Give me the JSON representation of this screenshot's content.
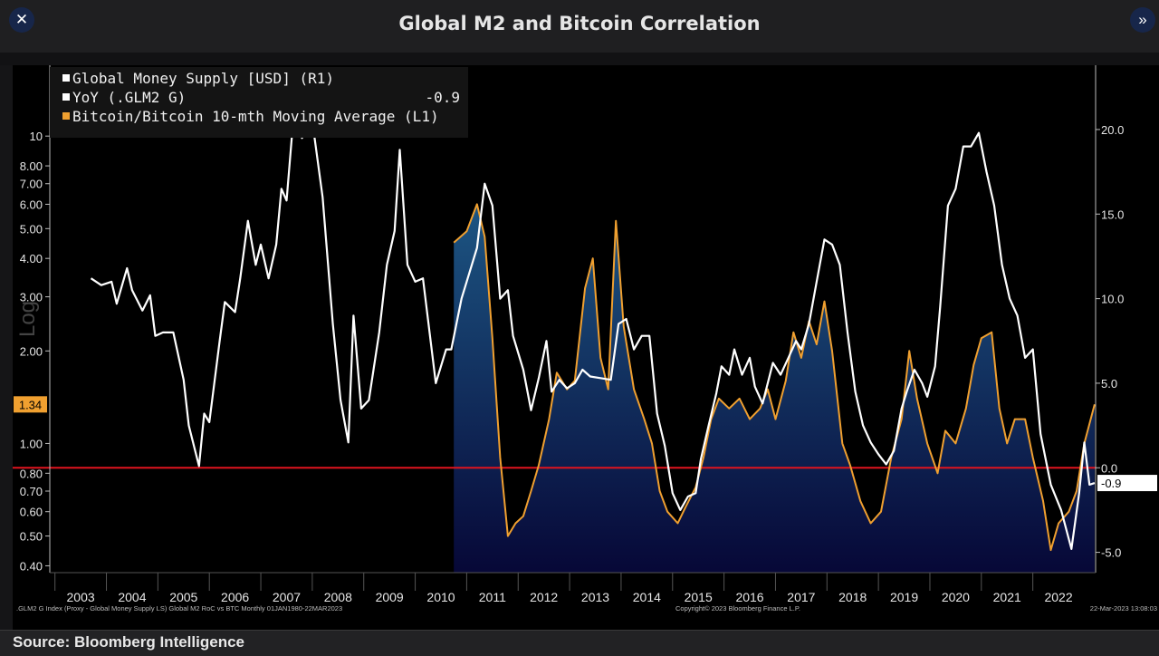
{
  "window": {
    "title": "Global M2 and Bitcoin Correlation",
    "close_glyph": "✕",
    "more_glyph": "»"
  },
  "footer": {
    "source": "Source: Bloomberg Intelligence",
    "left_note": ".GLM2 G Index (Proxy - Global Money Supply LS) Global M2 RoC vs BTC  Monthly 01JAN1980-22MAR2023",
    "center_note": "Copyright© 2023 Bloomberg Finance L.P.",
    "right_note": "22-Mar-2023 13:08:03"
  },
  "chart_data": {
    "type": "line",
    "legend": {
      "placement": "top-left",
      "entries": [
        {
          "label": "Global Money Supply [USD] (R1)",
          "value": ""
        },
        {
          "label": "YoY (.GLM2 G)",
          "value": "-0.9"
        },
        {
          "label": "Bitcoin/Bitcoin 10-mth Moving Average (L1)",
          "value": ""
        }
      ]
    },
    "left_axis": {
      "label": "Log",
      "scale": "log",
      "range": [
        0.38,
        17
      ],
      "ticks": [
        0.4,
        0.5,
        0.6,
        0.7,
        0.8,
        1.0,
        2.0,
        3.0,
        4.0,
        5.0,
        6.0,
        7.0,
        8.0,
        10
      ],
      "tick_labels": [
        "0.40",
        "0.50",
        "0.60",
        "0.70",
        "0.80",
        "1.00",
        "2.00",
        "3.00",
        "4.00",
        "5.00",
        "6.00",
        "7.00",
        "8.00",
        "10"
      ],
      "current_value": "1.34"
    },
    "right_axis": {
      "range": [
        -6.2,
        23.8
      ],
      "ticks": [
        -5,
        0,
        5,
        10,
        15,
        20
      ],
      "tick_labels": [
        "-5.0",
        "0.0",
        "5.0",
        "10.0",
        "15.0",
        "20.0"
      ],
      "current_value": "-0.9"
    },
    "x_axis": {
      "range": [
        2002.9,
        2023.22
      ],
      "tick_labels": [
        "2003",
        "2004",
        "2005",
        "2006",
        "2007",
        "2008",
        "2009",
        "2010",
        "2011",
        "2012",
        "2013",
        "2014",
        "2015",
        "2016",
        "2017",
        "2018",
        "2019",
        "2020",
        "2021",
        "2022"
      ]
    },
    "zero_line": {
      "value": 0,
      "color": "#e0141e"
    },
    "series": [
      {
        "name": "YoY (.GLM2 G)",
        "axis": "right",
        "color": "#ffffff",
        "points": [
          [
            2003.7,
            11.2
          ],
          [
            2003.9,
            10.8
          ],
          [
            2004.1,
            11.0
          ],
          [
            2004.2,
            9.7
          ],
          [
            2004.4,
            11.8
          ],
          [
            2004.5,
            10.5
          ],
          [
            2004.7,
            9.3
          ],
          [
            2004.85,
            10.2
          ],
          [
            2004.95,
            7.8
          ],
          [
            2005.1,
            8.0
          ],
          [
            2005.3,
            8.0
          ],
          [
            2005.5,
            5.2
          ],
          [
            2005.6,
            2.5
          ],
          [
            2005.8,
            0.1
          ],
          [
            2005.9,
            3.2
          ],
          [
            2006.0,
            2.7
          ],
          [
            2006.2,
            7.5
          ],
          [
            2006.3,
            9.8
          ],
          [
            2006.5,
            9.2
          ],
          [
            2006.6,
            11.2
          ],
          [
            2006.75,
            14.6
          ],
          [
            2006.9,
            12.0
          ],
          [
            2007.0,
            13.2
          ],
          [
            2007.15,
            11.2
          ],
          [
            2007.3,
            13.2
          ],
          [
            2007.4,
            16.5
          ],
          [
            2007.5,
            15.8
          ],
          [
            2007.6,
            19.5
          ],
          [
            2007.7,
            21.5
          ],
          [
            2007.8,
            19.5
          ],
          [
            2008.0,
            20.5
          ],
          [
            2008.2,
            16.0
          ],
          [
            2008.4,
            8.5
          ],
          [
            2008.55,
            4.0
          ],
          [
            2008.7,
            1.5
          ],
          [
            2008.8,
            9.0
          ],
          [
            2008.95,
            3.5
          ],
          [
            2009.1,
            4.0
          ],
          [
            2009.3,
            8.0
          ],
          [
            2009.45,
            12.0
          ],
          [
            2009.6,
            14.0
          ],
          [
            2009.7,
            18.8
          ],
          [
            2009.85,
            12.0
          ],
          [
            2010.0,
            11.0
          ],
          [
            2010.15,
            11.2
          ],
          [
            2010.4,
            5.0
          ],
          [
            2010.6,
            7.0
          ],
          [
            2010.7,
            7.0
          ],
          [
            2010.9,
            10.0
          ],
          [
            2011.0,
            11.0
          ],
          [
            2011.2,
            13.0
          ],
          [
            2011.35,
            16.8
          ],
          [
            2011.5,
            15.5
          ],
          [
            2011.65,
            10.0
          ],
          [
            2011.8,
            10.5
          ],
          [
            2011.9,
            7.8
          ],
          [
            2012.1,
            5.8
          ],
          [
            2012.25,
            3.4
          ],
          [
            2012.4,
            5.3
          ],
          [
            2012.55,
            7.5
          ],
          [
            2012.65,
            4.5
          ],
          [
            2012.8,
            5.2
          ],
          [
            2012.95,
            4.7
          ],
          [
            2013.1,
            5.0
          ],
          [
            2013.25,
            5.8
          ],
          [
            2013.4,
            5.4
          ],
          [
            2013.6,
            5.3
          ],
          [
            2013.8,
            5.2
          ],
          [
            2013.95,
            8.5
          ],
          [
            2014.1,
            8.8
          ],
          [
            2014.25,
            7.0
          ],
          [
            2014.4,
            7.8
          ],
          [
            2014.55,
            7.8
          ],
          [
            2014.7,
            3.2
          ],
          [
            2014.85,
            1.3
          ],
          [
            2015.0,
            -1.5
          ],
          [
            2015.15,
            -2.5
          ],
          [
            2015.3,
            -1.7
          ],
          [
            2015.45,
            -1.5
          ],
          [
            2015.55,
            0.5
          ],
          [
            2015.7,
            2.5
          ],
          [
            2015.85,
            4.4
          ],
          [
            2015.95,
            6.0
          ],
          [
            2016.1,
            5.5
          ],
          [
            2016.2,
            7.0
          ],
          [
            2016.35,
            5.5
          ],
          [
            2016.5,
            6.5
          ],
          [
            2016.6,
            4.8
          ],
          [
            2016.75,
            3.8
          ],
          [
            2016.95,
            6.2
          ],
          [
            2017.1,
            5.5
          ],
          [
            2017.25,
            6.5
          ],
          [
            2017.4,
            7.5
          ],
          [
            2017.5,
            7.0
          ],
          [
            2017.65,
            8.5
          ],
          [
            2017.8,
            11.0
          ],
          [
            2017.95,
            13.5
          ],
          [
            2018.1,
            13.2
          ],
          [
            2018.25,
            12.0
          ],
          [
            2018.4,
            8.0
          ],
          [
            2018.55,
            4.5
          ],
          [
            2018.7,
            2.5
          ],
          [
            2018.85,
            1.5
          ],
          [
            2019.0,
            0.8
          ],
          [
            2019.15,
            0.2
          ],
          [
            2019.3,
            1.0
          ],
          [
            2019.45,
            3.5
          ],
          [
            2019.55,
            4.5
          ],
          [
            2019.7,
            5.8
          ],
          [
            2019.85,
            5.0
          ],
          [
            2019.95,
            4.2
          ],
          [
            2020.1,
            6.0
          ],
          [
            2020.2,
            9.5
          ],
          [
            2020.35,
            15.5
          ],
          [
            2020.5,
            16.5
          ],
          [
            2020.65,
            19.0
          ],
          [
            2020.8,
            19.0
          ],
          [
            2020.95,
            19.8
          ],
          [
            2021.1,
            17.5
          ],
          [
            2021.25,
            15.5
          ],
          [
            2021.4,
            12.0
          ],
          [
            2021.55,
            10.0
          ],
          [
            2021.7,
            9.0
          ],
          [
            2021.85,
            6.5
          ],
          [
            2022.0,
            7.0
          ],
          [
            2022.15,
            2.0
          ],
          [
            2022.35,
            -1.0
          ],
          [
            2022.55,
            -2.5
          ],
          [
            2022.75,
            -4.8
          ],
          [
            2022.9,
            -1.5
          ],
          [
            2023.0,
            1.5
          ],
          [
            2023.1,
            -1.0
          ],
          [
            2023.2,
            -0.9
          ]
        ]
      },
      {
        "name": "Bitcoin/Bitcoin 10-mth Moving Average (L1)",
        "axis": "left",
        "color": "#f0a030",
        "points": [
          [
            2010.75,
            4.5
          ],
          [
            2011.0,
            4.9
          ],
          [
            2011.2,
            6.0
          ],
          [
            2011.35,
            4.7
          ],
          [
            2011.5,
            2.2
          ],
          [
            2011.65,
            0.9
          ],
          [
            2011.8,
            0.5
          ],
          [
            2011.95,
            0.55
          ],
          [
            2012.1,
            0.58
          ],
          [
            2012.25,
            0.7
          ],
          [
            2012.4,
            0.85
          ],
          [
            2012.6,
            1.2
          ],
          [
            2012.75,
            1.7
          ],
          [
            2012.95,
            1.5
          ],
          [
            2013.1,
            1.6
          ],
          [
            2013.3,
            3.2
          ],
          [
            2013.45,
            4.0
          ],
          [
            2013.6,
            1.9
          ],
          [
            2013.75,
            1.5
          ],
          [
            2013.9,
            5.3
          ],
          [
            2014.05,
            2.4
          ],
          [
            2014.25,
            1.5
          ],
          [
            2014.45,
            1.2
          ],
          [
            2014.6,
            1.0
          ],
          [
            2014.75,
            0.7
          ],
          [
            2014.9,
            0.6
          ],
          [
            2015.1,
            0.55
          ],
          [
            2015.25,
            0.62
          ],
          [
            2015.45,
            0.72
          ],
          [
            2015.6,
            0.9
          ],
          [
            2015.75,
            1.2
          ],
          [
            2015.9,
            1.4
          ],
          [
            2016.1,
            1.3
          ],
          [
            2016.3,
            1.4
          ],
          [
            2016.5,
            1.2
          ],
          [
            2016.7,
            1.3
          ],
          [
            2016.85,
            1.5
          ],
          [
            2017.0,
            1.2
          ],
          [
            2017.2,
            1.6
          ],
          [
            2017.35,
            2.3
          ],
          [
            2017.5,
            1.9
          ],
          [
            2017.65,
            2.5
          ],
          [
            2017.8,
            2.1
          ],
          [
            2017.95,
            2.9
          ],
          [
            2018.1,
            2.0
          ],
          [
            2018.3,
            1.0
          ],
          [
            2018.45,
            0.85
          ],
          [
            2018.65,
            0.65
          ],
          [
            2018.85,
            0.55
          ],
          [
            2019.05,
            0.6
          ],
          [
            2019.25,
            0.9
          ],
          [
            2019.45,
            1.2
          ],
          [
            2019.6,
            2.0
          ],
          [
            2019.75,
            1.4
          ],
          [
            2019.95,
            1.0
          ],
          [
            2020.15,
            0.8
          ],
          [
            2020.3,
            1.1
          ],
          [
            2020.5,
            1.0
          ],
          [
            2020.7,
            1.3
          ],
          [
            2020.85,
            1.8
          ],
          [
            2021.0,
            2.2
          ],
          [
            2021.2,
            2.3
          ],
          [
            2021.35,
            1.3
          ],
          [
            2021.5,
            1.0
          ],
          [
            2021.65,
            1.2
          ],
          [
            2021.85,
            1.2
          ],
          [
            2022.0,
            0.9
          ],
          [
            2022.2,
            0.65
          ],
          [
            2022.35,
            0.45
          ],
          [
            2022.5,
            0.55
          ],
          [
            2022.7,
            0.6
          ],
          [
            2022.85,
            0.7
          ],
          [
            2023.0,
            1.0
          ],
          [
            2023.2,
            1.34
          ]
        ]
      }
    ]
  }
}
